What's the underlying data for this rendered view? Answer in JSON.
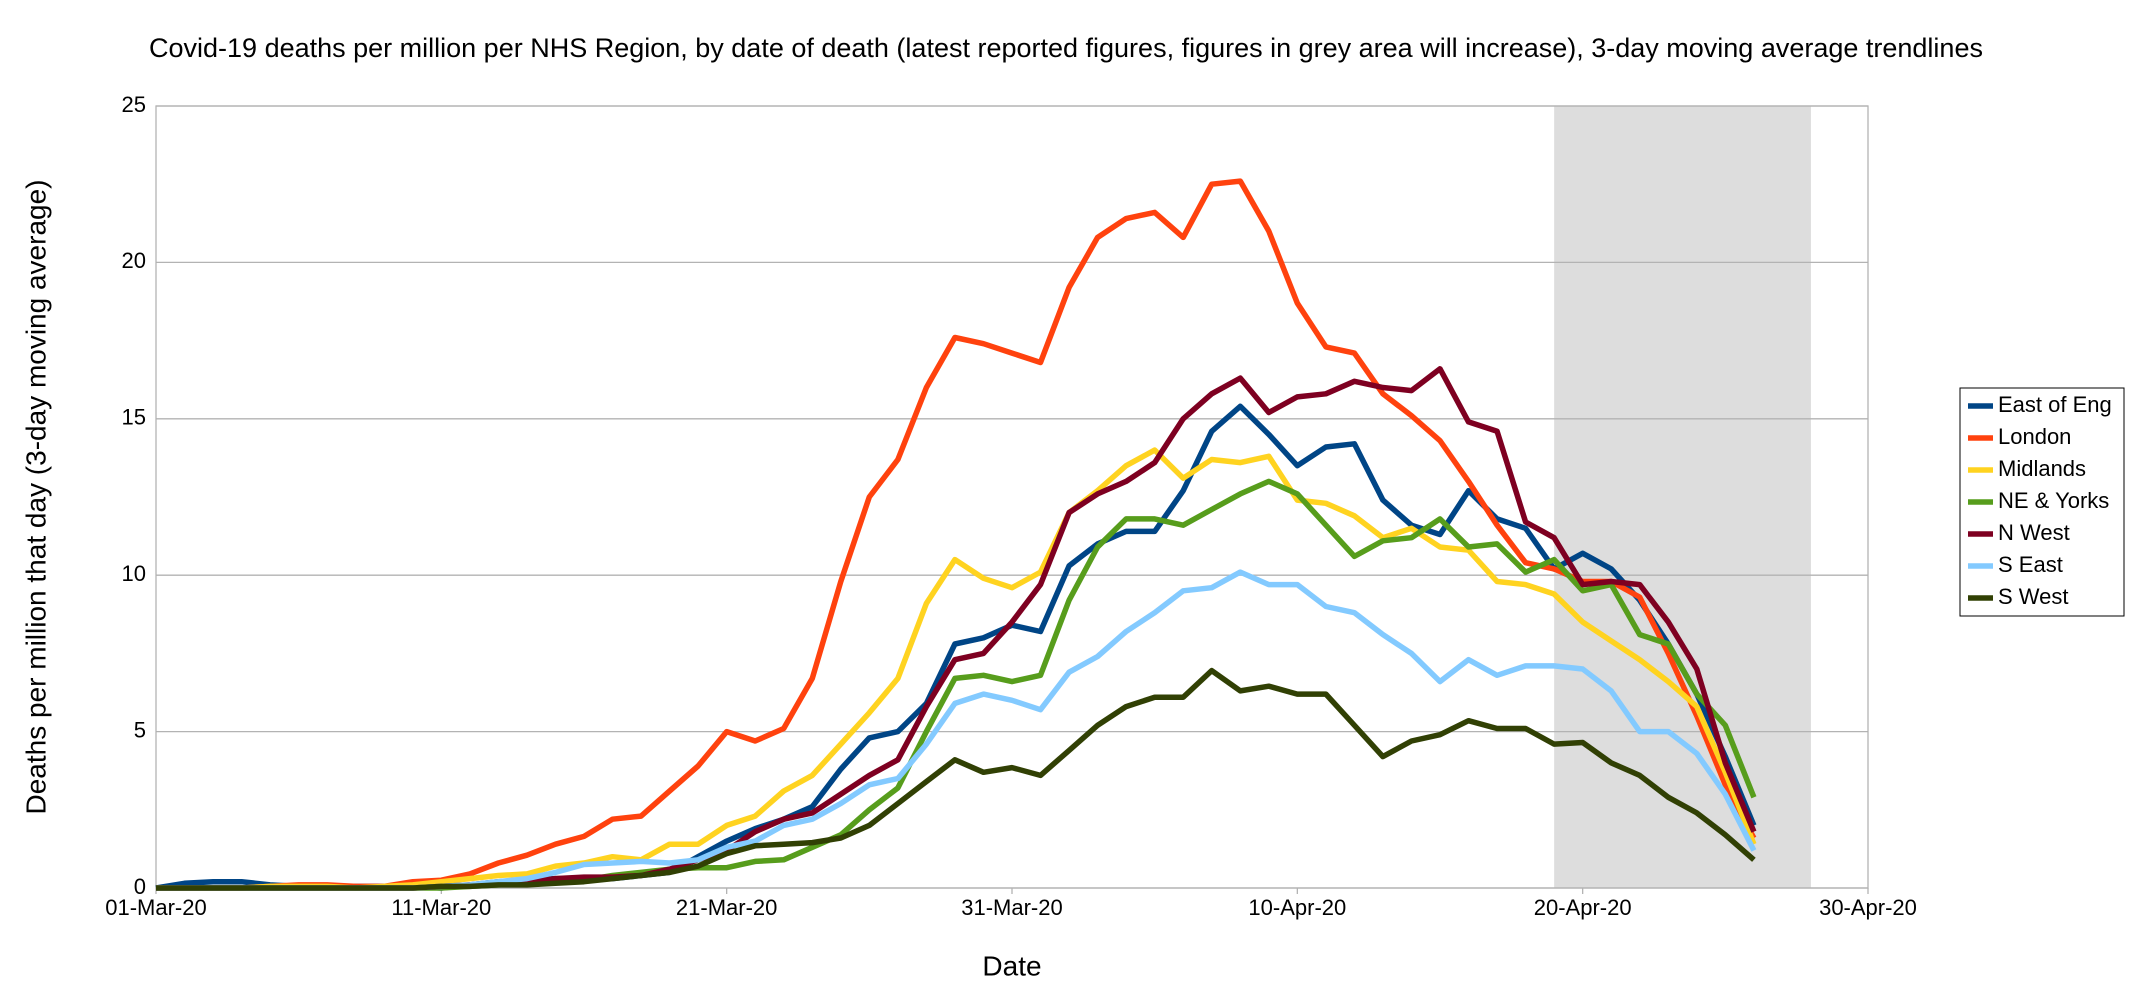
{
  "chart_data": {
    "type": "line",
    "title": "Covid-19 deaths per million per NHS Region, by date of death (latest reported figures, figures in grey area will increase), 3-day moving average trendlines",
    "x_label": "Date",
    "y_label": "Deaths per million that day (3-day moving average)",
    "x": [
      "01-Mar-20",
      "02-Mar-20",
      "03-Mar-20",
      "04-Mar-20",
      "05-Mar-20",
      "06-Mar-20",
      "07-Mar-20",
      "08-Mar-20",
      "09-Mar-20",
      "10-Mar-20",
      "11-Mar-20",
      "12-Mar-20",
      "13-Mar-20",
      "14-Mar-20",
      "15-Mar-20",
      "16-Mar-20",
      "17-Mar-20",
      "18-Mar-20",
      "19-Mar-20",
      "20-Mar-20",
      "21-Mar-20",
      "22-Mar-20",
      "23-Mar-20",
      "24-Mar-20",
      "25-Mar-20",
      "26-Mar-20",
      "27-Mar-20",
      "28-Mar-20",
      "29-Mar-20",
      "30-Mar-20",
      "31-Mar-20",
      "01-Apr-20",
      "02-Apr-20",
      "03-Apr-20",
      "04-Apr-20",
      "05-Apr-20",
      "06-Apr-20",
      "07-Apr-20",
      "08-Apr-20",
      "09-Apr-20",
      "10-Apr-20",
      "11-Apr-20",
      "12-Apr-20",
      "13-Apr-20",
      "14-Apr-20",
      "15-Apr-20",
      "16-Apr-20",
      "17-Apr-20",
      "18-Apr-20",
      "19-Apr-20",
      "20-Apr-20",
      "21-Apr-20",
      "22-Apr-20",
      "23-Apr-20",
      "24-Apr-20",
      "25-Apr-20",
      "26-Apr-20"
    ],
    "series": [
      {
        "name": "East of Eng",
        "color": "#004586",
        "values": [
          0,
          0.15,
          0.2,
          0.2,
          0.1,
          0.05,
          0.05,
          0.05,
          0.05,
          0.05,
          0,
          0.1,
          0.2,
          0.25,
          0.3,
          0.3,
          0.3,
          0.4,
          0.5,
          1.0,
          1.5,
          1.9,
          2.2,
          2.6,
          3.8,
          4.8,
          5.0,
          5.9,
          7.8,
          8.0,
          8.4,
          8.2,
          10.3,
          11.0,
          11.4,
          11.4,
          12.7,
          14.6,
          15.4,
          14.5,
          13.5,
          14.1,
          14.2,
          12.4,
          11.6,
          11.3,
          12.7,
          11.8,
          11.5,
          10.2,
          10.7,
          10.2,
          9.2,
          7.8,
          6.2,
          4.2,
          2.0
        ]
      },
      {
        "name": "London",
        "color": "#ff420e",
        "values": [
          0,
          0,
          0,
          0,
          0.05,
          0.1,
          0.1,
          0.05,
          0.05,
          0.2,
          0.25,
          0.45,
          0.8,
          1.05,
          1.4,
          1.65,
          2.2,
          2.3,
          3.1,
          3.9,
          5.0,
          4.7,
          5.1,
          6.7,
          9.8,
          12.5,
          13.7,
          16.0,
          17.6,
          17.4,
          17.1,
          16.8,
          19.2,
          20.8,
          21.4,
          21.6,
          20.8,
          22.5,
          22.6,
          21.0,
          18.7,
          17.3,
          17.1,
          15.8,
          15.1,
          14.3,
          13.0,
          11.6,
          10.4,
          10.2,
          9.8,
          9.8,
          9.3,
          7.5,
          5.5,
          3.3,
          1.6
        ]
      },
      {
        "name": "Midlands",
        "color": "#ffd320",
        "values": [
          0,
          0,
          0,
          0,
          0.05,
          0.05,
          0.05,
          0,
          0.05,
          0.1,
          0.2,
          0.3,
          0.4,
          0.45,
          0.7,
          0.8,
          1.0,
          0.9,
          1.4,
          1.4,
          2.0,
          2.3,
          3.1,
          3.6,
          4.6,
          5.6,
          6.7,
          9.1,
          10.5,
          9.9,
          9.6,
          10.1,
          12.0,
          12.7,
          13.5,
          14.0,
          13.1,
          13.7,
          13.6,
          13.8,
          12.4,
          12.3,
          11.9,
          11.2,
          11.5,
          10.9,
          10.8,
          9.8,
          9.7,
          9.4,
          8.5,
          7.9,
          7.3,
          6.6,
          5.8,
          3.7,
          1.4
        ]
      },
      {
        "name": "NE & Yorks",
        "color": "#579d1c",
        "values": [
          0,
          0,
          0,
          0,
          0,
          0,
          0,
          0,
          0,
          0,
          0,
          0.05,
          0.1,
          0.15,
          0.2,
          0.25,
          0.4,
          0.5,
          0.6,
          0.65,
          0.65,
          0.85,
          0.9,
          1.3,
          1.7,
          2.5,
          3.2,
          5.0,
          6.7,
          6.8,
          6.6,
          6.8,
          9.2,
          10.9,
          11.8,
          11.8,
          11.6,
          12.1,
          12.6,
          13.0,
          12.6,
          11.6,
          10.6,
          11.1,
          11.2,
          11.8,
          10.9,
          11.0,
          10.1,
          10.5,
          9.5,
          9.7,
          8.1,
          7.8,
          6.2,
          5.2,
          2.9
        ]
      },
      {
        "name": "N West",
        "color": "#7e0021",
        "values": [
          0,
          0,
          0,
          0,
          0,
          0,
          0,
          0,
          0,
          0,
          0.05,
          0.1,
          0.15,
          0.2,
          0.3,
          0.35,
          0.35,
          0.4,
          0.6,
          0.9,
          1.2,
          1.8,
          2.2,
          2.4,
          3.0,
          3.6,
          4.1,
          5.8,
          7.3,
          7.5,
          8.5,
          9.7,
          12.0,
          12.6,
          13.0,
          13.6,
          15.0,
          15.8,
          16.3,
          15.2,
          15.7,
          15.8,
          16.2,
          16.0,
          15.9,
          16.6,
          14.9,
          14.6,
          11.7,
          11.2,
          9.7,
          9.8,
          9.7,
          8.5,
          7.0,
          4.0,
          1.8
        ]
      },
      {
        "name": "S East",
        "color": "#83caff",
        "values": [
          0,
          0,
          0,
          0,
          0,
          0,
          0,
          0,
          0,
          0,
          0.05,
          0.1,
          0.2,
          0.3,
          0.5,
          0.75,
          0.8,
          0.85,
          0.8,
          0.9,
          1.3,
          1.5,
          2.0,
          2.2,
          2.7,
          3.3,
          3.5,
          4.6,
          5.9,
          6.2,
          6.0,
          5.7,
          6.9,
          7.4,
          8.2,
          8.8,
          9.5,
          9.6,
          10.1,
          9.7,
          9.7,
          9.0,
          8.8,
          8.1,
          7.5,
          6.6,
          7.3,
          6.8,
          7.1,
          7.1,
          7.0,
          6.3,
          5.0,
          5.0,
          4.3,
          3.0,
          1.2
        ]
      },
      {
        "name": "S West",
        "color": "#314004",
        "values": [
          0,
          0,
          0,
          0,
          0,
          0,
          0,
          0,
          0,
          0,
          0.05,
          0.05,
          0.1,
          0.1,
          0.15,
          0.2,
          0.3,
          0.4,
          0.5,
          0.7,
          1.1,
          1.35,
          1.4,
          1.45,
          1.6,
          2.0,
          2.7,
          3.4,
          4.1,
          3.7,
          3.85,
          3.6,
          4.4,
          5.2,
          5.8,
          6.1,
          6.1,
          6.95,
          6.3,
          6.45,
          6.2,
          6.2,
          5.2,
          4.2,
          4.7,
          4.9,
          5.35,
          5.1,
          5.1,
          4.6,
          4.65,
          4.0,
          3.6,
          2.9,
          2.4,
          1.7,
          0.9
        ]
      }
    ],
    "xlim": [
      "01-Mar-20",
      "30-Apr-20"
    ],
    "xticks": [
      "01-Mar-20",
      "11-Mar-20",
      "21-Mar-20",
      "31-Mar-20",
      "10-Apr-20",
      "20-Apr-20",
      "30-Apr-20"
    ],
    "ylim": [
      0,
      25
    ],
    "yticks": [
      0,
      5,
      10,
      15,
      20,
      25
    ],
    "shaded_region": [
      "19-Apr-20",
      "28-Apr-20"
    ],
    "shaded_color": "#dddddd",
    "grid": true,
    "legend": "right"
  }
}
